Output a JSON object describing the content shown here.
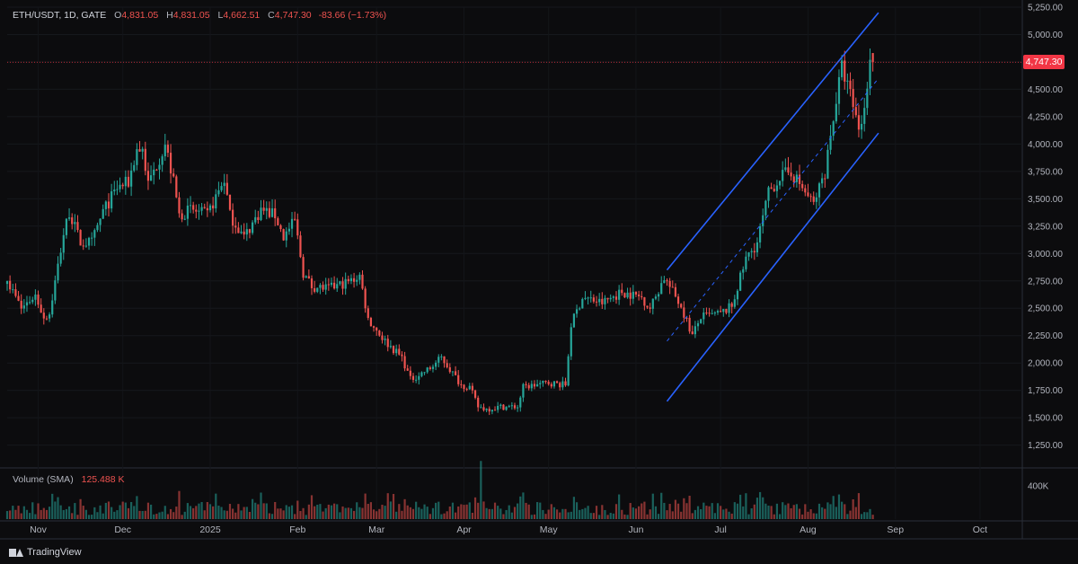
{
  "header": {
    "symbol": "ETH/USDT, 1D, GATE",
    "open_label": "O",
    "open": "4,831.05",
    "high_label": "H",
    "high": "4,831.05",
    "low_label": "L",
    "low": "4,662.51",
    "close_label": "C",
    "close": "4,747.30",
    "change": "-83.66 (−1.73%)"
  },
  "volume_indicator": {
    "label": "Volume (SMA)",
    "value": "125.488 K"
  },
  "last_price_label": "4,747.30",
  "brand": "TradingView",
  "colors": {
    "up": "#26a69a",
    "down": "#ef5350",
    "channel": "#2962ff",
    "background": "#0c0c0e",
    "last_price": "#f23645"
  },
  "chart_data": [
    {
      "type": "candlestick",
      "symbol": "ETH/USDT",
      "interval": "1D",
      "exchange": "GATE",
      "y_range": [
        1050,
        5250
      ],
      "y_ticks": [
        "5,250.00",
        "5,000.00",
        "4,750.00",
        "4,500.00",
        "4,250.00",
        "4,000.00",
        "3,750.00",
        "3,500.00",
        "3,250.00",
        "3,000.00",
        "2,750.00",
        "2,500.00",
        "2,250.00",
        "2,000.00",
        "1,750.00",
        "1,500.00",
        "1,250.00"
      ],
      "y_tick_values": [
        5250,
        5000,
        4750,
        4500,
        4250,
        4000,
        3750,
        3500,
        3250,
        3000,
        2750,
        2500,
        2250,
        2000,
        1750,
        1500,
        1250
      ],
      "x_start": "2024-10-21",
      "x_end": "2025-10-16",
      "x_labels": [
        {
          "date": "2024-11-01",
          "label": "Nov"
        },
        {
          "date": "2024-12-01",
          "label": "Dec"
        },
        {
          "date": "2025-01-01",
          "label": "2025"
        },
        {
          "date": "2025-02-01",
          "label": "Feb"
        },
        {
          "date": "2025-03-01",
          "label": "Mar"
        },
        {
          "date": "2025-04-01",
          "label": "Apr"
        },
        {
          "date": "2025-05-01",
          "label": "May"
        },
        {
          "date": "2025-06-01",
          "label": "Jun"
        },
        {
          "date": "2025-07-01",
          "label": "Jul"
        },
        {
          "date": "2025-08-01",
          "label": "Aug"
        },
        {
          "date": "2025-09-01",
          "label": "Sep"
        },
        {
          "date": "2025-10-01",
          "label": "Oct"
        }
      ],
      "close_path": [
        {
          "date": "2024-10-21",
          "close": 2750
        },
        {
          "date": "2024-10-26",
          "close": 2500
        },
        {
          "date": "2024-10-31",
          "close": 2620
        },
        {
          "date": "2024-11-03",
          "close": 2420
        },
        {
          "date": "2024-11-05",
          "close": 2450
        },
        {
          "date": "2024-11-10",
          "close": 3180
        },
        {
          "date": "2024-11-12",
          "close": 3380
        },
        {
          "date": "2024-11-16",
          "close": 3100
        },
        {
          "date": "2024-11-20",
          "close": 3100
        },
        {
          "date": "2024-11-24",
          "close": 3380
        },
        {
          "date": "2024-11-29",
          "close": 3600
        },
        {
          "date": "2024-12-03",
          "close": 3650
        },
        {
          "date": "2024-12-06",
          "close": 3950
        },
        {
          "date": "2024-12-08",
          "close": 3950
        },
        {
          "date": "2024-12-10",
          "close": 3630
        },
        {
          "date": "2024-12-16",
          "close": 4000
        },
        {
          "date": "2024-12-19",
          "close": 3650
        },
        {
          "date": "2024-12-21",
          "close": 3350
        },
        {
          "date": "2024-12-25",
          "close": 3400
        },
        {
          "date": "2024-12-31",
          "close": 3350
        },
        {
          "date": "2025-01-06",
          "close": 3680
        },
        {
          "date": "2025-01-08",
          "close": 3350
        },
        {
          "date": "2025-01-13",
          "close": 3150
        },
        {
          "date": "2025-01-19",
          "close": 3400
        },
        {
          "date": "2025-01-24",
          "close": 3350
        },
        {
          "date": "2025-01-27",
          "close": 3150
        },
        {
          "date": "2025-01-31",
          "close": 3300
        },
        {
          "date": "2025-02-03",
          "close": 2820
        },
        {
          "date": "2025-02-06",
          "close": 2700
        },
        {
          "date": "2025-02-12",
          "close": 2680
        },
        {
          "date": "2025-02-20",
          "close": 2750
        },
        {
          "date": "2025-02-23",
          "close": 2800
        },
        {
          "date": "2025-02-26",
          "close": 2400
        },
        {
          "date": "2025-03-04",
          "close": 2200
        },
        {
          "date": "2025-03-10",
          "close": 2050
        },
        {
          "date": "2025-03-13",
          "close": 1850
        },
        {
          "date": "2025-03-20",
          "close": 1950
        },
        {
          "date": "2025-03-24",
          "close": 2050
        },
        {
          "date": "2025-03-31",
          "close": 1800
        },
        {
          "date": "2025-04-03",
          "close": 1780
        },
        {
          "date": "2025-04-06",
          "close": 1600
        },
        {
          "date": "2025-04-09",
          "close": 1580
        },
        {
          "date": "2025-04-14",
          "close": 1600
        },
        {
          "date": "2025-04-20",
          "close": 1600
        },
        {
          "date": "2025-04-22",
          "close": 1780
        },
        {
          "date": "2025-05-01",
          "close": 1820
        },
        {
          "date": "2025-05-07",
          "close": 1800
        },
        {
          "date": "2025-05-09",
          "close": 2350
        },
        {
          "date": "2025-05-13",
          "close": 2600
        },
        {
          "date": "2025-05-20",
          "close": 2550
        },
        {
          "date": "2025-05-27",
          "close": 2650
        },
        {
          "date": "2025-06-03",
          "close": 2600
        },
        {
          "date": "2025-06-06",
          "close": 2500
        },
        {
          "date": "2025-06-11",
          "close": 2780
        },
        {
          "date": "2025-06-17",
          "close": 2520
        },
        {
          "date": "2025-06-21",
          "close": 2250
        },
        {
          "date": "2025-06-24",
          "close": 2420
        },
        {
          "date": "2025-07-01",
          "close": 2450
        },
        {
          "date": "2025-07-05",
          "close": 2520
        },
        {
          "date": "2025-07-10",
          "close": 2950
        },
        {
          "date": "2025-07-14",
          "close": 3100
        },
        {
          "date": "2025-07-18",
          "close": 3550
        },
        {
          "date": "2025-07-22",
          "close": 3700
        },
        {
          "date": "2025-07-26",
          "close": 3750
        },
        {
          "date": "2025-08-01",
          "close": 3520
        },
        {
          "date": "2025-08-03",
          "close": 3450
        },
        {
          "date": "2025-08-07",
          "close": 3750
        },
        {
          "date": "2025-08-10",
          "close": 4250
        },
        {
          "date": "2025-08-13",
          "close": 4700
        },
        {
          "date": "2025-08-16",
          "close": 4450
        },
        {
          "date": "2025-08-19",
          "close": 4150
        },
        {
          "date": "2025-08-21",
          "close": 4300
        },
        {
          "date": "2025-08-23",
          "close": 4831.05
        },
        {
          "date": "2025-08-24",
          "close": 4747.3
        }
      ],
      "volume": {
        "label": "Volume (SMA)",
        "max_tick": "400K",
        "max_tick_value": 400000,
        "peak_date": "2025-04-07",
        "peak_value": 700000,
        "baseline": 125000
      },
      "channel": {
        "color": "#2962ff",
        "upper": [
          {
            "date": "2025-06-12",
            "price": 2850
          },
          {
            "date": "2025-08-26",
            "price": 5200
          }
        ],
        "lower": [
          {
            "date": "2025-06-12",
            "price": 1650
          },
          {
            "date": "2025-08-26",
            "price": 4100
          }
        ],
        "mid": [
          {
            "date": "2025-06-12",
            "price": 2200
          },
          {
            "date": "2025-08-26",
            "price": 4600
          }
        ]
      },
      "last_price": 4747.3
    }
  ]
}
